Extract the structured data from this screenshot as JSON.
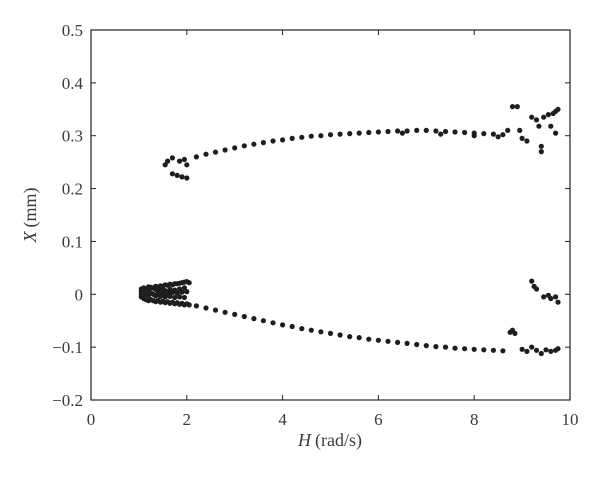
{
  "chart_data": {
    "type": "scatter",
    "title": "",
    "xlabel": {
      "var": "H",
      "unit": "(rad/s)"
    },
    "ylabel": {
      "var": "X",
      "unit": "(mm)"
    },
    "xlim": [
      0,
      10
    ],
    "ylim": [
      -0.2,
      0.5
    ],
    "grid": false,
    "legend": "none",
    "xticks": [
      "0",
      "2",
      "4",
      "6",
      "8",
      "10"
    ],
    "yticks": [
      "0.5",
      "0.4",
      "0.3",
      "0.2",
      "0.1",
      "0",
      "−0.1",
      "−0.2"
    ],
    "xtick_values": [
      0,
      2,
      4,
      6,
      8,
      10
    ],
    "ytick_values": [
      0.5,
      0.4,
      0.3,
      0.2,
      0.1,
      0,
      -0.1,
      -0.2
    ],
    "marker_color": "#1e1e1e",
    "series": [
      {
        "points": [
          [
            1.05,
            -0.005
          ],
          [
            1.05,
            0.0
          ],
          [
            1.05,
            0.005
          ],
          [
            1.05,
            0.01
          ],
          [
            1.1,
            -0.008
          ],
          [
            1.1,
            0.002
          ],
          [
            1.1,
            0.012
          ],
          [
            1.15,
            -0.01
          ],
          [
            1.15,
            0.0
          ],
          [
            1.15,
            0.01
          ],
          [
            1.2,
            -0.012
          ],
          [
            1.2,
            -0.002
          ],
          [
            1.2,
            0.008
          ],
          [
            1.2,
            0.014
          ],
          [
            1.25,
            -0.01
          ],
          [
            1.25,
            0.003
          ],
          [
            1.25,
            0.013
          ],
          [
            1.3,
            -0.012
          ],
          [
            1.3,
            0.0
          ],
          [
            1.3,
            0.012
          ],
          [
            1.35,
            -0.014
          ],
          [
            1.35,
            -0.003
          ],
          [
            1.35,
            0.009
          ],
          [
            1.35,
            0.015
          ],
          [
            1.4,
            -0.012
          ],
          [
            1.4,
            0.002
          ],
          [
            1.4,
            0.014
          ],
          [
            1.45,
            -0.015
          ],
          [
            1.45,
            -0.004
          ],
          [
            1.45,
            0.008
          ],
          [
            1.45,
            0.016
          ],
          [
            1.5,
            -0.013
          ],
          [
            1.5,
            0.001
          ],
          [
            1.5,
            0.015
          ],
          [
            1.55,
            -0.016
          ],
          [
            1.55,
            -0.005
          ],
          [
            1.55,
            0.007
          ],
          [
            1.55,
            0.018
          ],
          [
            1.6,
            -0.014
          ],
          [
            1.6,
            0.002
          ],
          [
            1.6,
            0.017
          ],
          [
            1.65,
            -0.017
          ],
          [
            1.65,
            -0.004
          ],
          [
            1.65,
            0.009
          ],
          [
            1.65,
            0.019
          ],
          [
            1.7,
            -0.015
          ],
          [
            1.7,
            0.003
          ],
          [
            1.7,
            0.018
          ],
          [
            1.75,
            -0.018
          ],
          [
            1.75,
            -0.006
          ],
          [
            1.75,
            0.008
          ],
          [
            1.75,
            0.02
          ],
          [
            1.8,
            -0.016
          ],
          [
            1.8,
            0.002
          ],
          [
            1.8,
            0.02
          ],
          [
            1.85,
            -0.019
          ],
          [
            1.85,
            -0.005
          ],
          [
            1.85,
            0.01
          ],
          [
            1.85,
            0.021
          ],
          [
            1.9,
            -0.017
          ],
          [
            1.9,
            0.004
          ],
          [
            1.9,
            0.022
          ],
          [
            1.95,
            -0.02
          ],
          [
            1.95,
            -0.006
          ],
          [
            1.95,
            0.012
          ],
          [
            1.95,
            0.023
          ],
          [
            2.0,
            -0.018
          ],
          [
            2.0,
            0.005
          ],
          [
            2.0,
            0.024
          ],
          [
            2.05,
            -0.02
          ],
          [
            2.05,
            0.022
          ],
          [
            2.2,
            -0.022
          ],
          [
            2.4,
            -0.026
          ],
          [
            2.6,
            -0.03
          ],
          [
            2.8,
            -0.034
          ],
          [
            3.0,
            -0.038
          ],
          [
            3.2,
            -0.042
          ],
          [
            3.4,
            -0.046
          ],
          [
            3.6,
            -0.05
          ],
          [
            3.8,
            -0.054
          ],
          [
            4.0,
            -0.058
          ],
          [
            4.2,
            -0.061
          ],
          [
            4.4,
            -0.065
          ],
          [
            4.6,
            -0.068
          ],
          [
            4.8,
            -0.071
          ],
          [
            5.0,
            -0.074
          ],
          [
            5.2,
            -0.077
          ],
          [
            5.4,
            -0.08
          ],
          [
            5.6,
            -0.082
          ],
          [
            5.8,
            -0.085
          ],
          [
            6.0,
            -0.087
          ],
          [
            6.2,
            -0.089
          ],
          [
            6.4,
            -0.091
          ],
          [
            6.6,
            -0.093
          ],
          [
            6.8,
            -0.095
          ],
          [
            7.0,
            -0.097
          ],
          [
            7.2,
            -0.099
          ],
          [
            7.4,
            -0.1
          ],
          [
            7.6,
            -0.102
          ],
          [
            7.8,
            -0.103
          ],
          [
            8.0,
            -0.104
          ],
          [
            8.2,
            -0.105
          ],
          [
            8.4,
            -0.106
          ],
          [
            8.6,
            -0.107
          ],
          [
            8.75,
            -0.072
          ],
          [
            8.8,
            -0.068
          ],
          [
            8.85,
            -0.074
          ],
          [
            9.0,
            -0.104
          ],
          [
            9.1,
            -0.108
          ],
          [
            9.2,
            -0.1
          ],
          [
            9.3,
            -0.106
          ],
          [
            9.4,
            -0.112
          ],
          [
            9.5,
            -0.105
          ],
          [
            9.6,
            -0.108
          ],
          [
            9.7,
            -0.106
          ],
          [
            9.75,
            -0.103
          ],
          [
            9.2,
            0.025
          ],
          [
            9.25,
            0.015
          ],
          [
            9.3,
            0.01
          ],
          [
            9.45,
            -0.005
          ],
          [
            9.55,
            -0.002
          ],
          [
            9.6,
            -0.008
          ],
          [
            9.7,
            -0.005
          ],
          [
            9.75,
            -0.015
          ]
        ]
      },
      {
        "points": [
          [
            1.55,
            0.245
          ],
          [
            1.6,
            0.252
          ],
          [
            1.7,
            0.258
          ],
          [
            1.85,
            0.252
          ],
          [
            2.0,
            0.245
          ],
          [
            1.95,
            0.255
          ],
          [
            1.7,
            0.228
          ],
          [
            1.8,
            0.225
          ],
          [
            1.9,
            0.222
          ],
          [
            2.0,
            0.22
          ],
          [
            2.2,
            0.26
          ],
          [
            2.4,
            0.265
          ],
          [
            2.6,
            0.269
          ],
          [
            2.8,
            0.273
          ],
          [
            3.0,
            0.277
          ],
          [
            3.2,
            0.281
          ],
          [
            3.4,
            0.284
          ],
          [
            3.6,
            0.287
          ],
          [
            3.8,
            0.29
          ],
          [
            4.0,
            0.292
          ],
          [
            4.2,
            0.295
          ],
          [
            4.4,
            0.297
          ],
          [
            4.6,
            0.299
          ],
          [
            4.8,
            0.3
          ],
          [
            5.0,
            0.302
          ],
          [
            5.2,
            0.303
          ],
          [
            5.4,
            0.304
          ],
          [
            5.6,
            0.305
          ],
          [
            5.8,
            0.306
          ],
          [
            6.0,
            0.307
          ],
          [
            6.2,
            0.308
          ],
          [
            6.4,
            0.309
          ],
          [
            6.6,
            0.309
          ],
          [
            6.8,
            0.31
          ],
          [
            7.0,
            0.31
          ],
          [
            7.2,
            0.309
          ],
          [
            7.4,
            0.308
          ],
          [
            7.6,
            0.307
          ],
          [
            7.8,
            0.306
          ],
          [
            8.0,
            0.305
          ],
          [
            8.2,
            0.304
          ],
          [
            8.4,
            0.303
          ],
          [
            8.6,
            0.302
          ],
          [
            6.5,
            0.305
          ],
          [
            7.3,
            0.303
          ],
          [
            8.0,
            0.3
          ],
          [
            8.5,
            0.298
          ],
          [
            8.7,
            0.31
          ],
          [
            8.8,
            0.355
          ],
          [
            8.9,
            0.355
          ],
          [
            8.95,
            0.31
          ],
          [
            9.0,
            0.295
          ],
          [
            9.1,
            0.29
          ],
          [
            9.2,
            0.335
          ],
          [
            9.3,
            0.33
          ],
          [
            9.35,
            0.318
          ],
          [
            9.4,
            0.28
          ],
          [
            9.4,
            0.27
          ],
          [
            9.45,
            0.335
          ],
          [
            9.55,
            0.34
          ],
          [
            9.65,
            0.342
          ],
          [
            9.7,
            0.346
          ],
          [
            9.75,
            0.35
          ],
          [
            9.6,
            0.318
          ],
          [
            9.7,
            0.305
          ]
        ]
      }
    ]
  }
}
